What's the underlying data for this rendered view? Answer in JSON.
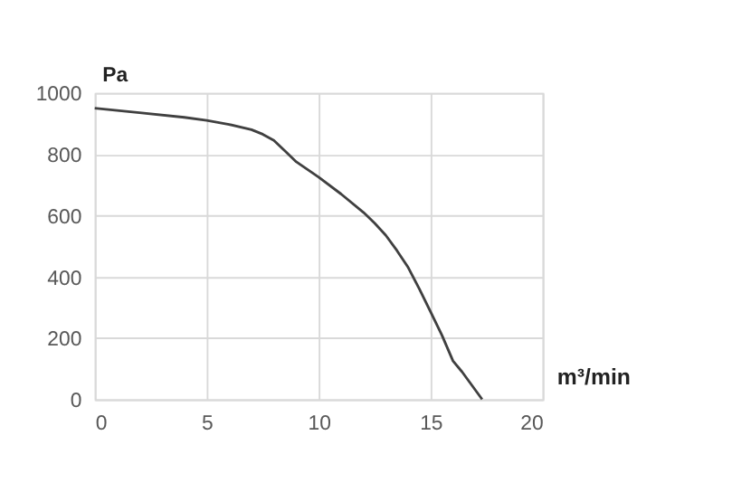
{
  "chart_data": {
    "type": "line",
    "xlabel": "m³/min",
    "ylabel": "Pa",
    "x": [
      0,
      2,
      4,
      5,
      6,
      7,
      7.5,
      8,
      8.5,
      9,
      10,
      11,
      12,
      12.5,
      13,
      13.5,
      14,
      14.5,
      15,
      15.5,
      16,
      16.4,
      17.3
    ],
    "series": [
      {
        "color": "#404040",
        "values": [
          950,
          935,
          920,
          910,
          897,
          880,
          865,
          845,
          810,
          775,
          725,
          670,
          610,
          575,
          535,
          485,
          430,
          360,
          285,
          210,
          125,
          90,
          0
        ]
      }
    ],
    "xlim": [
      0,
      20
    ],
    "xticks": [
      0,
      5,
      10,
      15,
      20
    ],
    "ylim": [
      0,
      1000
    ],
    "yticks": [
      0,
      200,
      400,
      600,
      800,
      1000
    ],
    "grid": true,
    "marker": "none",
    "line_style": "solid"
  }
}
